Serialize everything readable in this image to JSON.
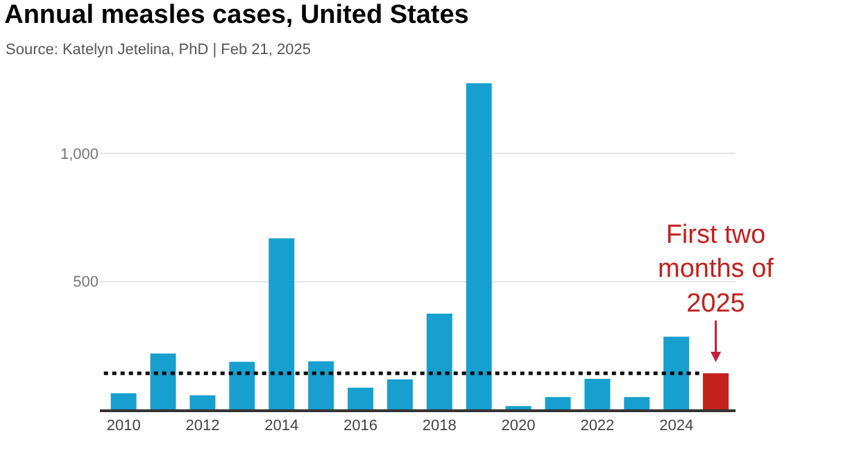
{
  "chart_data": {
    "type": "bar",
    "title": "Annual measles cases, United States",
    "subtitle": "Source: Katelyn Jetelina, PhD | Feb 21, 2025",
    "categories": [
      "2010",
      null,
      "2012",
      null,
      "2014",
      null,
      "2016",
      null,
      "2018",
      null,
      "2020",
      null,
      "2022",
      null,
      "2024",
      null
    ],
    "values": [
      63,
      218,
      55,
      186,
      668,
      188,
      85,
      117,
      374,
      1274,
      13,
      48,
      119,
      48,
      284,
      141
    ],
    "colors": [
      "#179fcf",
      "#179fcf",
      "#179fcf",
      "#179fcf",
      "#179fcf",
      "#179fcf",
      "#179fcf",
      "#179fcf",
      "#179fcf",
      "#179fcf",
      "#179fcf",
      "#179fcf",
      "#179fcf",
      "#179fcf",
      "#179fcf",
      "#c4201c"
    ],
    "ylim": [
      0,
      1274
    ],
    "yticks": [
      {
        "value": 0,
        "label": null
      },
      500,
      {
        "value": 1000,
        "label": "1,000"
      }
    ],
    "grid": "y",
    "ref_lines": [
      {
        "axis": "y",
        "value": 141,
        "color": "#000000",
        "line_style": "dotted"
      }
    ],
    "annotations": [
      {
        "text": "First two months of 2025",
        "y": 141
      }
    ]
  }
}
